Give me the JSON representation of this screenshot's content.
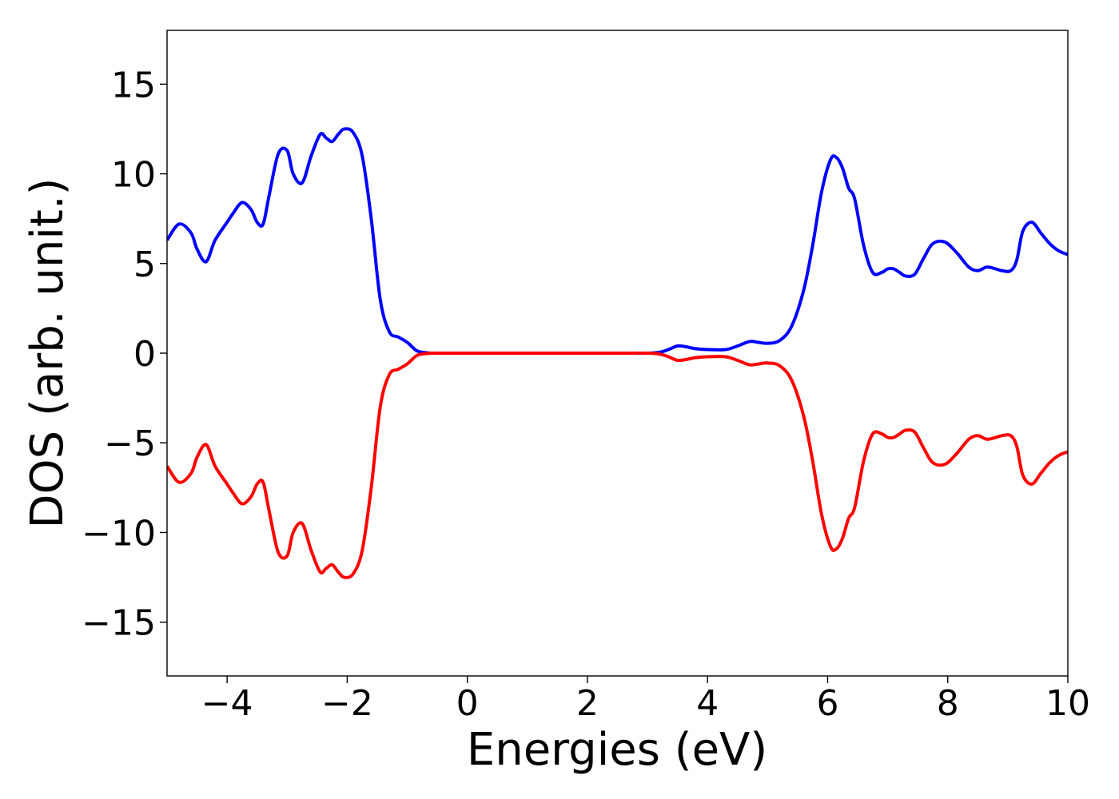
{
  "chart_data": {
    "type": "line",
    "title": "",
    "xlabel": "Energies (eV)",
    "ylabel": "DOS (arb. unit.)",
    "xlim": [
      -5,
      10
    ],
    "ylim": [
      -18,
      18
    ],
    "xticks": [
      -4,
      -2,
      0,
      2,
      4,
      6,
      8,
      10
    ],
    "yticks": [
      -15,
      -10,
      -5,
      0,
      5,
      10,
      15
    ],
    "xtick_labels": [
      "−4",
      "−2",
      "0",
      "2",
      "4",
      "6",
      "8",
      "10"
    ],
    "ytick_labels": [
      "−15",
      "−10",
      "−5",
      "0",
      "5",
      "10",
      "15"
    ],
    "grid": false,
    "legend": "none",
    "colors": {
      "spin_up": "#0000ff",
      "spin_down": "#ff0000",
      "axes": "#000000",
      "background": "#ffffff"
    },
    "series": [
      {
        "color": "#0000ff",
        "x": [
          -5.0,
          -4.8,
          -4.6,
          -4.5,
          -4.35,
          -4.2,
          -4.0,
          -3.9,
          -3.75,
          -3.6,
          -3.5,
          -3.4,
          -3.3,
          -3.15,
          -3.0,
          -2.9,
          -2.75,
          -2.6,
          -2.45,
          -2.35,
          -2.25,
          -2.15,
          -2.05,
          -1.9,
          -1.75,
          -1.6,
          -1.45,
          -1.3,
          -1.15,
          -1.0,
          -0.85,
          -0.75,
          -0.6,
          -0.5,
          -0.2,
          0.5,
          1.5,
          2.5,
          3.0,
          3.2,
          3.35,
          3.5,
          3.65,
          3.8,
          4.0,
          4.3,
          4.5,
          4.7,
          4.85,
          5.0,
          5.2,
          5.4,
          5.6,
          5.75,
          5.9,
          6.05,
          6.15,
          6.25,
          6.35,
          6.45,
          6.6,
          6.75,
          6.9,
          7.0,
          7.1,
          7.2,
          7.3,
          7.45,
          7.6,
          7.75,
          7.95,
          8.15,
          8.35,
          8.5,
          8.65,
          8.8,
          8.9,
          9.05,
          9.15,
          9.25,
          9.4,
          9.55,
          9.7,
          9.85,
          10.0
        ],
        "y": [
          6.3,
          7.2,
          6.7,
          5.8,
          5.1,
          6.3,
          7.3,
          7.8,
          8.4,
          8.0,
          7.3,
          7.2,
          8.8,
          11.1,
          11.3,
          10.0,
          9.5,
          11.0,
          12.2,
          12.0,
          11.8,
          12.2,
          12.5,
          12.3,
          11.0,
          7.5,
          3.0,
          1.2,
          0.9,
          0.6,
          0.15,
          0.05,
          0.0,
          0.0,
          0.0,
          0.0,
          0.0,
          0.0,
          0.0,
          0.05,
          0.2,
          0.4,
          0.35,
          0.25,
          0.2,
          0.2,
          0.4,
          0.65,
          0.6,
          0.55,
          0.7,
          1.5,
          3.5,
          6.0,
          9.0,
          10.8,
          10.9,
          10.3,
          9.2,
          8.6,
          6.0,
          4.5,
          4.5,
          4.7,
          4.7,
          4.5,
          4.3,
          4.4,
          5.3,
          6.1,
          6.2,
          5.6,
          4.8,
          4.6,
          4.8,
          4.7,
          4.6,
          4.6,
          5.2,
          6.8,
          7.3,
          6.7,
          6.1,
          5.7,
          5.5
        ]
      },
      {
        "color": "#ff0000",
        "x": [
          -5.0,
          -4.8,
          -4.6,
          -4.5,
          -4.35,
          -4.2,
          -4.0,
          -3.9,
          -3.75,
          -3.6,
          -3.5,
          -3.4,
          -3.3,
          -3.15,
          -3.0,
          -2.9,
          -2.75,
          -2.6,
          -2.45,
          -2.35,
          -2.25,
          -2.15,
          -2.05,
          -1.9,
          -1.75,
          -1.6,
          -1.45,
          -1.3,
          -1.15,
          -1.0,
          -0.85,
          -0.75,
          -0.6,
          -0.5,
          -0.2,
          0.5,
          1.5,
          2.5,
          3.0,
          3.2,
          3.35,
          3.5,
          3.65,
          3.8,
          4.0,
          4.3,
          4.5,
          4.7,
          4.85,
          5.0,
          5.2,
          5.4,
          5.6,
          5.75,
          5.9,
          6.05,
          6.15,
          6.25,
          6.35,
          6.45,
          6.6,
          6.75,
          6.9,
          7.0,
          7.1,
          7.2,
          7.3,
          7.45,
          7.6,
          7.75,
          7.95,
          8.15,
          8.35,
          8.5,
          8.65,
          8.8,
          8.9,
          9.05,
          9.15,
          9.25,
          9.4,
          9.55,
          9.7,
          9.85,
          10.0
        ],
        "y": [
          -6.3,
          -7.2,
          -6.7,
          -5.8,
          -5.1,
          -6.3,
          -7.3,
          -7.8,
          -8.4,
          -8.0,
          -7.3,
          -7.2,
          -8.8,
          -11.1,
          -11.3,
          -10.0,
          -9.5,
          -11.0,
          -12.2,
          -12.0,
          -11.8,
          -12.2,
          -12.5,
          -12.3,
          -11.0,
          -7.5,
          -3.0,
          -1.2,
          -0.9,
          -0.6,
          -0.15,
          -0.05,
          0.0,
          0.0,
          0.0,
          0.0,
          0.0,
          0.0,
          0.0,
          -0.05,
          -0.2,
          -0.4,
          -0.35,
          -0.25,
          -0.2,
          -0.2,
          -0.4,
          -0.65,
          -0.6,
          -0.55,
          -0.7,
          -1.5,
          -3.5,
          -6.0,
          -9.0,
          -10.8,
          -10.9,
          -10.3,
          -9.2,
          -8.6,
          -6.0,
          -4.5,
          -4.5,
          -4.7,
          -4.7,
          -4.5,
          -4.3,
          -4.4,
          -5.3,
          -6.1,
          -6.2,
          -5.6,
          -4.8,
          -4.6,
          -4.8,
          -4.7,
          -4.6,
          -4.6,
          -5.2,
          -6.8,
          -7.3,
          -6.7,
          -6.1,
          -5.7,
          -5.5
        ]
      }
    ]
  }
}
